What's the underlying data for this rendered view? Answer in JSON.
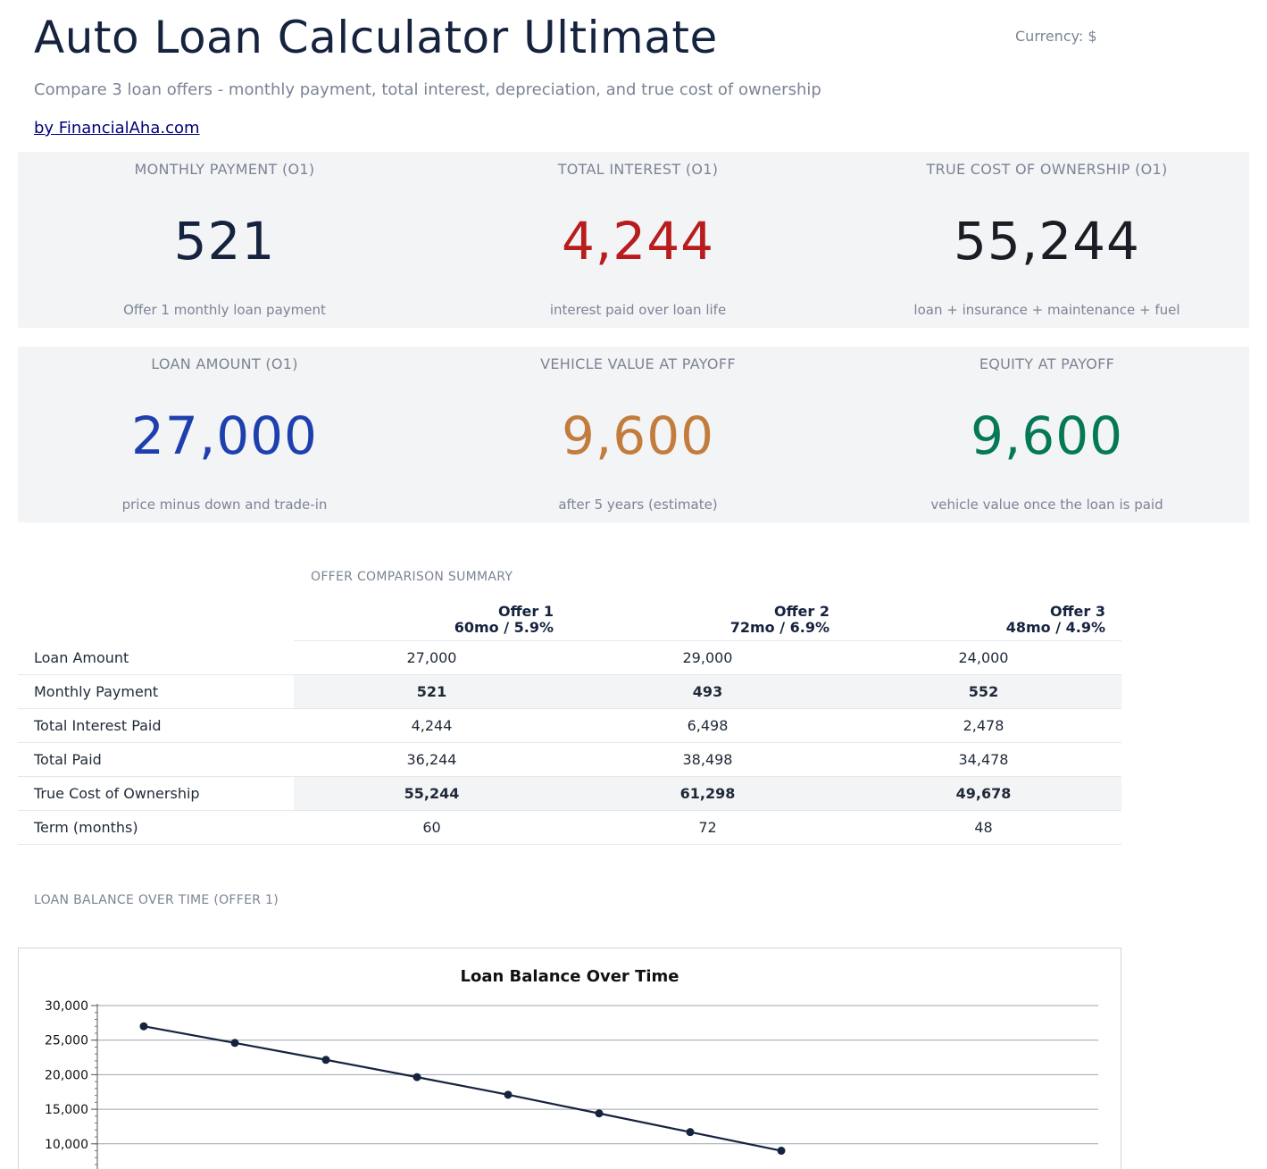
{
  "header": {
    "title": "Auto Loan Calculator Ultimate",
    "currency_label": "Currency: $",
    "subtitle": "Compare 3 loan offers - monthly payment, total interest, depreciation, and true cost of ownership",
    "byline": "by FinancialAha.com"
  },
  "cards": [
    {
      "label": "MONTHLY PAYMENT (O1)",
      "value": "521",
      "note": "Offer 1 monthly loan payment",
      "color": "#16233f"
    },
    {
      "label": "TOTAL INTEREST (O1)",
      "value": "4,244",
      "note": "interest paid over loan life",
      "color": "#b91c1c"
    },
    {
      "label": "TRUE COST OF OWNERSHIP (O1)",
      "value": "55,244",
      "note": "loan + insurance + maintenance + fuel",
      "color": "#1a1d24"
    },
    {
      "label": "LOAN AMOUNT (O1)",
      "value": "27,000",
      "note": "price minus down and trade-in",
      "color": "#1e40af"
    },
    {
      "label": "VEHICLE VALUE AT PAYOFF",
      "value": "9,600",
      "note": "after 5 years (estimate)",
      "color": "#c27c3e"
    },
    {
      "label": "EQUITY AT PAYOFF",
      "value": "9,600",
      "note": "vehicle value once the loan is paid",
      "color": "#047857"
    }
  ],
  "comparison": {
    "section_label": "OFFER COMPARISON SUMMARY",
    "offers": [
      {
        "name": "Offer 1",
        "terms": "60mo / 5.9%"
      },
      {
        "name": "Offer 2",
        "terms": "72mo / 6.9%"
      },
      {
        "name": "Offer 3",
        "terms": "48mo / 4.9%"
      }
    ],
    "rows": [
      {
        "metric": "Loan Amount",
        "values": [
          "27,000",
          "29,000",
          "24,000"
        ],
        "highlight": false
      },
      {
        "metric": "Monthly Payment",
        "values": [
          "521",
          "493",
          "552"
        ],
        "highlight": true
      },
      {
        "metric": "Total Interest Paid",
        "values": [
          "4,244",
          "6,498",
          "2,478"
        ],
        "highlight": false
      },
      {
        "metric": "Total Paid",
        "values": [
          "36,244",
          "38,498",
          "34,478"
        ],
        "highlight": false
      },
      {
        "metric": "True Cost of Ownership",
        "values": [
          "55,244",
          "61,298",
          "49,678"
        ],
        "highlight": true
      },
      {
        "metric": "Term (months)",
        "values": [
          "60",
          "72",
          "48"
        ],
        "highlight": false
      }
    ]
  },
  "balance_section_label": "LOAN BALANCE OVER TIME (OFFER 1)",
  "chart_data": {
    "type": "line",
    "title": "Loan Balance Over Time",
    "xlabel": "",
    "ylabel": "",
    "ylim": [
      0,
      30000
    ],
    "y_ticks": [
      30000,
      25000,
      20000,
      15000,
      10000
    ],
    "y_tick_labels": [
      "30,000",
      "25,000",
      "20,000",
      "15,000",
      "10,000"
    ],
    "grid": true,
    "legend": "none",
    "line_color": "#16233f",
    "series": [
      {
        "values": [
          27000,
          24600,
          22150,
          19650,
          17100,
          14400,
          11700,
          9000
        ]
      }
    ]
  }
}
